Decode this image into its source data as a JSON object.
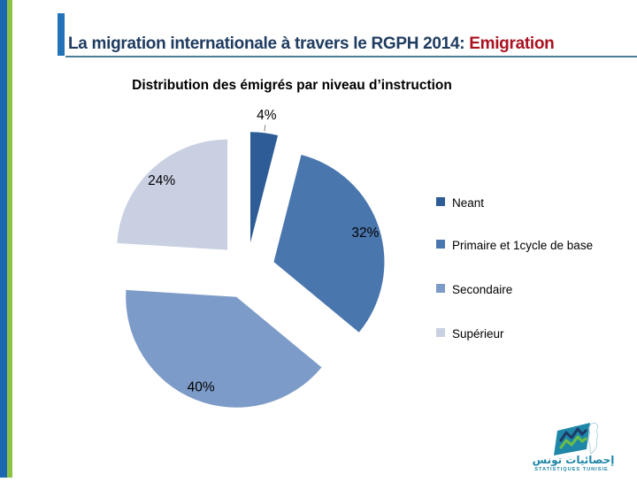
{
  "slide": {
    "title": {
      "main": "La migration internationale à travers le RGPH 2014: ",
      "highlight": "Emigration"
    },
    "subtitle": "Distribution des émigrés par niveau d’instruction"
  },
  "chart_data": {
    "type": "pie",
    "title": "Distribution des émigrés par niveau d’instruction",
    "labels": [
      "Neant",
      "Primaire et 1cycle de base",
      "Secondaire",
      "Supérieur"
    ],
    "values": [
      4,
      32,
      40,
      24
    ],
    "unit": "%",
    "data_labels": [
      "4%",
      "32%",
      "40%",
      "24%"
    ],
    "colors": [
      "#2e5c96",
      "#4a76ae",
      "#7d9bc8",
      "#c8d0e2"
    ],
    "start_angle_deg": 0,
    "direction": "clockwise",
    "exploded": true,
    "legend_position": "right"
  },
  "footer_logo": {
    "arabic": "إحصائيات تونس",
    "latin": "STATISTIQUES TUNISIE"
  },
  "theme_colors": {
    "title_text": "#1f3c61",
    "title_highlight": "#a91220",
    "title_underline": "#4c7e95",
    "accent_bar": "#2273b8",
    "left_stripe_blue": "#1b67b2",
    "left_stripe_green": "#8cc342",
    "logo_teal": "#1e87a8",
    "logo_navy": "#1f3864",
    "logo_green": "#6cbe45"
  }
}
